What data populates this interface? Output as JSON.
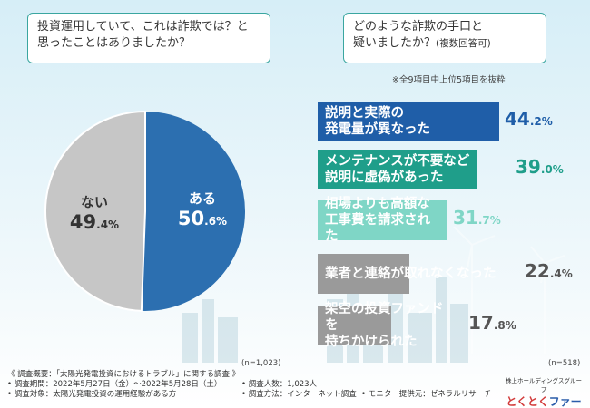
{
  "left_question": {
    "line1": "投資運用していて、これは詐欺では？と",
    "line2": "思ったことはありましたか？"
  },
  "right_question": {
    "line1": "どのような詐欺の手口と",
    "line2": "疑いましたか？",
    "line2_small": "(複数回答可)"
  },
  "right_note": "※全9項目中上位5項目を抜粋",
  "pie": {
    "n_label": "(n=1,023)",
    "aru": {
      "name": "ある",
      "int": "50",
      "dec": ".6%"
    },
    "nai": {
      "name": "ない",
      "int": "49",
      "dec": ".4%"
    }
  },
  "bars": {
    "n_label": "(n=518)",
    "items": [
      {
        "line1": "説明と実際の",
        "line2": "発電量が異なった",
        "int": "44",
        "dec": ".2%"
      },
      {
        "line1": "メンテナンスが不要など",
        "line2": "説明に虚偽があった",
        "int": "39",
        "dec": ".0%"
      },
      {
        "line1": "相場よりも高額な",
        "line2": "工事費を請求された",
        "int": "31",
        "dec": ".7%"
      },
      {
        "line1": "業者と連絡が取れなくなった",
        "line2": "",
        "int": "22",
        "dec": ".4%"
      },
      {
        "line1": "架空の投資ファンドを",
        "line2": "持ちかけられた",
        "int": "17",
        "dec": ".8%"
      }
    ]
  },
  "chart_data": [
    {
      "type": "pie",
      "title": "投資運用していて、これは詐欺では？と思ったことはありましたか？",
      "categories": [
        "ある",
        "ない"
      ],
      "values": [
        50.6,
        49.4
      ],
      "n": "(n=1,023)"
    },
    {
      "type": "bar",
      "title": "どのような詐欺の手口と疑いましたか？(複数回答可)",
      "categories": [
        "説明と実際の発電量が異なった",
        "メンテナンスが不要など説明に虚偽があった",
        "相場よりも高額な工事費を請求された",
        "業者と連絡が取れなくなった",
        "架空の投資ファンドを持ちかけられた"
      ],
      "values": [
        44.2,
        39.0,
        31.7,
        22.4,
        17.8
      ],
      "n": "(n=518)"
    }
  ],
  "colors": {
    "aru": "#2c6fb0",
    "nai": "#c6c6c6",
    "bars": [
      "#1f5ea8",
      "#1f9e8a",
      "#7fd6c6",
      "#9a9a9a",
      "#9a9a9a"
    ],
    "bar_vals": [
      "#1f5ea8",
      "#1f9e8a",
      "#7fd6c6",
      "#555555",
      "#555555"
    ]
  },
  "footer": {
    "line1": "《 調査概要：「太陽光発電投資におけるトラブル」に関する調査 》",
    "period": "• 調査期間：2022年5月27日（金）～2022年5月28日（土）",
    "target": "• 調査対象：太陽光発電投資の運用経験がある方",
    "count": "• 調査人数：1,023人",
    "method": "• 調査方法：インターネット調査",
    "provider": "• モニター提供元：ゼネラルリサーチ"
  },
  "logo": {
    "top": "株上ホールディングスグループ",
    "brand_red": "とくとく",
    "brand_blue": "ファーム"
  }
}
